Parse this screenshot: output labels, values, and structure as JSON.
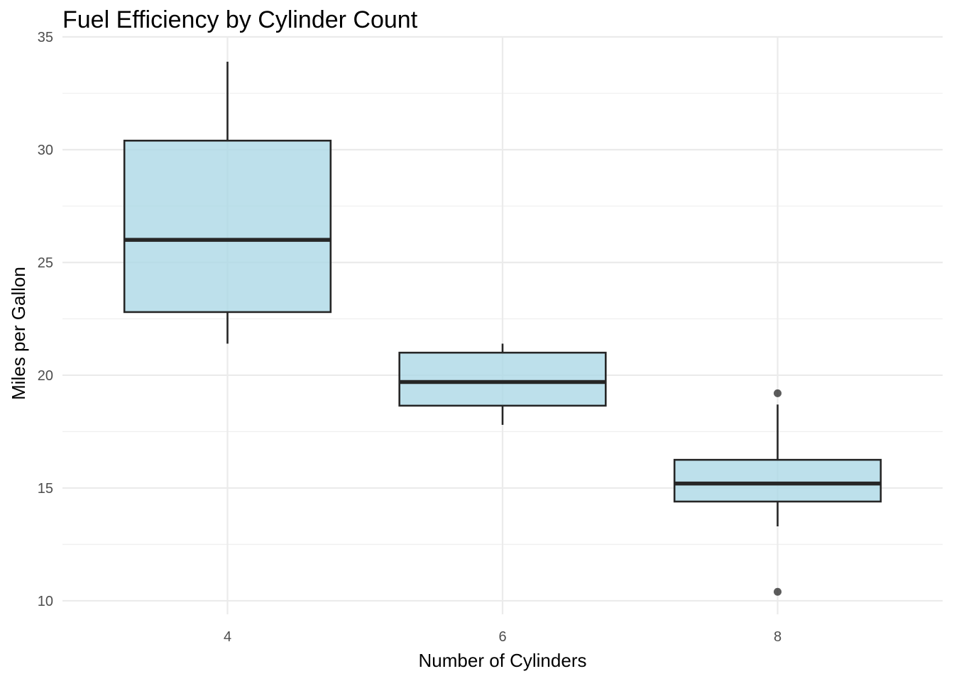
{
  "chart_data": {
    "type": "box",
    "title": "Fuel Efficiency by Cylinder Count",
    "xlabel": "Number of Cylinders",
    "ylabel": "Miles per Gallon",
    "categories": [
      "4",
      "6",
      "8"
    ],
    "ylim": [
      9.4,
      35
    ],
    "y_ticks": [
      "10",
      "15",
      "20",
      "25",
      "30",
      "35"
    ],
    "grid": "major and minor",
    "colors": {
      "box_fill": "#add8e6",
      "box_line": "#262626",
      "grid": "#ebebeb",
      "tick_text": "#4d4d4d"
    },
    "boxes": [
      {
        "category": "4",
        "whisker_low": 21.4,
        "q1": 22.8,
        "median": 26.0,
        "q3": 30.4,
        "whisker_high": 33.9,
        "outliers": []
      },
      {
        "category": "6",
        "whisker_low": 17.8,
        "q1": 18.65,
        "median": 19.7,
        "q3": 21.0,
        "whisker_high": 21.4,
        "outliers": []
      },
      {
        "category": "8",
        "whisker_low": 13.3,
        "q1": 14.4,
        "median": 15.2,
        "q3": 16.25,
        "whisker_high": 18.7,
        "outliers": [
          10.4,
          19.2
        ]
      }
    ]
  }
}
